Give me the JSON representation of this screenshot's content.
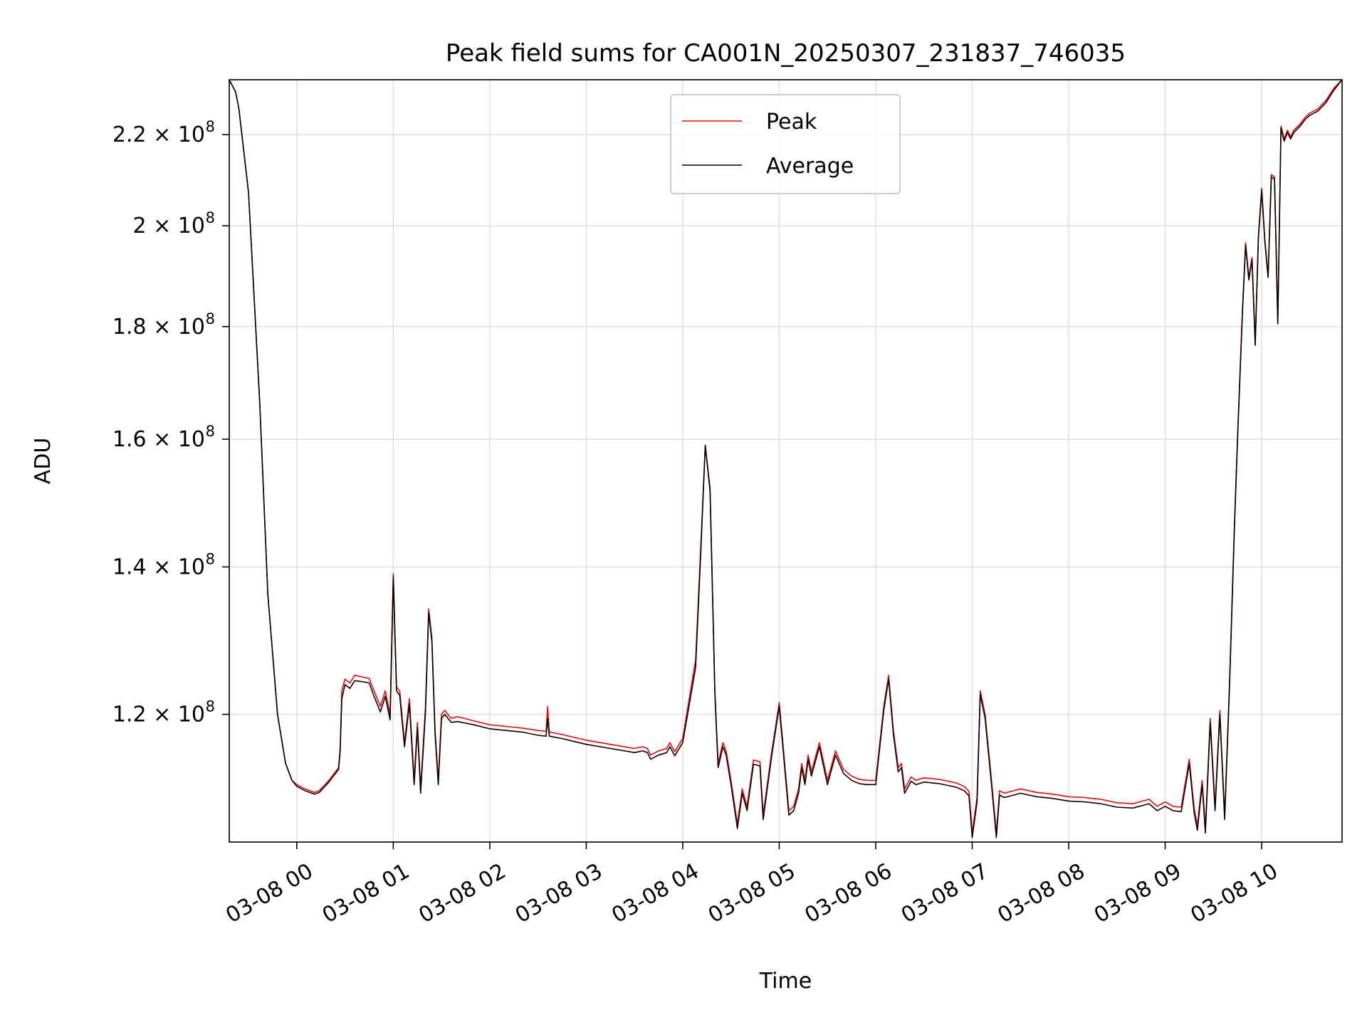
{
  "chart_data": {
    "type": "line",
    "title": "Peak field sums for CA001N_20250307_231837_746035",
    "xlabel": "Time",
    "ylabel": "ADU",
    "y_scale": "log",
    "x_range": [
      "2025-03-07 23:18",
      "2025-03-08 10:50"
    ],
    "ylim": [
      105000000,
      233000000
    ],
    "x_ticks": [
      {
        "t": "2025-03-08 00:00",
        "label": "03-08 00"
      },
      {
        "t": "2025-03-08 01:00",
        "label": "03-08 01"
      },
      {
        "t": "2025-03-08 02:00",
        "label": "03-08 02"
      },
      {
        "t": "2025-03-08 03:00",
        "label": "03-08 03"
      },
      {
        "t": "2025-03-08 04:00",
        "label": "03-08 04"
      },
      {
        "t": "2025-03-08 05:00",
        "label": "03-08 05"
      },
      {
        "t": "2025-03-08 06:00",
        "label": "03-08 06"
      },
      {
        "t": "2025-03-08 07:00",
        "label": "03-08 07"
      },
      {
        "t": "2025-03-08 08:00",
        "label": "03-08 08"
      },
      {
        "t": "2025-03-08 09:00",
        "label": "03-08 09"
      },
      {
        "t": "2025-03-08 10:00",
        "label": "03-08 10"
      }
    ],
    "y_ticks": [
      {
        "value": 120000000,
        "mantissa": "1.2"
      },
      {
        "value": 140000000,
        "mantissa": "1.4"
      },
      {
        "value": 160000000,
        "mantissa": "1.6"
      },
      {
        "value": 180000000,
        "mantissa": "1.8"
      },
      {
        "value": 200000000,
        "mantissa": "2"
      },
      {
        "value": 220000000,
        "mantissa": "2.2"
      }
    ],
    "y_tick_format": {
      "times": "×",
      "base": "10",
      "exponent": "8"
    },
    "grid": true,
    "legend_position": "upper center",
    "series": [
      {
        "name": "Peak",
        "color": "#ff0000",
        "x": [
          "2025-03-07 23:18",
          "2025-03-07 23:22",
          "2025-03-07 23:24",
          "2025-03-07 23:30",
          "2025-03-07 23:37",
          "2025-03-07 23:42",
          "2025-03-07 23:48",
          "2025-03-07 23:53",
          "2025-03-07 23:57",
          "2025-03-08 00:00",
          "2025-03-08 00:05",
          "2025-03-08 00:11",
          "2025-03-08 00:14",
          "2025-03-08 00:20",
          "2025-03-08 00:26",
          "2025-03-08 00:27",
          "2025-03-08 00:28",
          "2025-03-08 00:30",
          "2025-03-08 00:33",
          "2025-03-08 00:36",
          "2025-03-08 00:40",
          "2025-03-08 00:45",
          "2025-03-08 00:48",
          "2025-03-08 00:52",
          "2025-03-08 00:55",
          "2025-03-08 00:58",
          "2025-03-08 01:00",
          "2025-03-08 01:02",
          "2025-03-08 01:04",
          "2025-03-08 01:07",
          "2025-03-08 01:10",
          "2025-03-08 01:13",
          "2025-03-08 01:15",
          "2025-03-08 01:17",
          "2025-03-08 01:20",
          "2025-03-08 01:22",
          "2025-03-08 01:24",
          "2025-03-08 01:26",
          "2025-03-08 01:28",
          "2025-03-08 01:30",
          "2025-03-08 01:32",
          "2025-03-08 01:34",
          "2025-03-08 01:36",
          "2025-03-08 01:40",
          "2025-03-08 01:50",
          "2025-03-08 02:00",
          "2025-03-08 02:10",
          "2025-03-08 02:20",
          "2025-03-08 02:30",
          "2025-03-08 02:35",
          "2025-03-08 02:36",
          "2025-03-08 02:37",
          "2025-03-08 02:45",
          "2025-03-08 03:00",
          "2025-03-08 03:15",
          "2025-03-08 03:30",
          "2025-03-08 03:35",
          "2025-03-08 03:38",
          "2025-03-08 03:40",
          "2025-03-08 03:45",
          "2025-03-08 03:50",
          "2025-03-08 03:52",
          "2025-03-08 03:55",
          "2025-03-08 04:00",
          "2025-03-08 04:08",
          "2025-03-08 04:11",
          "2025-03-08 04:14",
          "2025-03-08 04:17",
          "2025-03-08 04:20",
          "2025-03-08 04:22",
          "2025-03-08 04:25",
          "2025-03-08 04:27",
          "2025-03-08 04:30",
          "2025-03-08 04:34",
          "2025-03-08 04:37",
          "2025-03-08 04:40",
          "2025-03-08 04:44",
          "2025-03-08 04:48",
          "2025-03-08 04:50",
          "2025-03-08 04:55",
          "2025-03-08 05:00",
          "2025-03-08 05:06",
          "2025-03-08 05:09",
          "2025-03-08 05:12",
          "2025-03-08 05:14",
          "2025-03-08 05:16",
          "2025-03-08 05:18",
          "2025-03-08 05:20",
          "2025-03-08 05:25",
          "2025-03-08 05:30",
          "2025-03-08 05:35",
          "2025-03-08 05:40",
          "2025-03-08 05:45",
          "2025-03-08 05:50",
          "2025-03-08 05:55",
          "2025-03-08 06:00",
          "2025-03-08 06:05",
          "2025-03-08 06:08",
          "2025-03-08 06:11",
          "2025-03-08 06:14",
          "2025-03-08 06:16",
          "2025-03-08 06:18",
          "2025-03-08 06:22",
          "2025-03-08 06:25",
          "2025-03-08 06:30",
          "2025-03-08 06:40",
          "2025-03-08 06:50",
          "2025-03-08 06:55",
          "2025-03-08 06:58",
          "2025-03-08 07:00",
          "2025-03-08 07:03",
          "2025-03-08 07:05",
          "2025-03-08 07:08",
          "2025-03-08 07:12",
          "2025-03-08 07:15",
          "2025-03-08 07:17",
          "2025-03-08 07:20",
          "2025-03-08 07:30",
          "2025-03-08 07:40",
          "2025-03-08 07:50",
          "2025-03-08 08:00",
          "2025-03-08 08:10",
          "2025-03-08 08:20",
          "2025-03-08 08:30",
          "2025-03-08 08:40",
          "2025-03-08 08:50",
          "2025-03-08 08:55",
          "2025-03-08 09:00",
          "2025-03-08 09:05",
          "2025-03-08 09:10",
          "2025-03-08 09:15",
          "2025-03-08 09:18",
          "2025-03-08 09:20",
          "2025-03-08 09:23",
          "2025-03-08 09:25",
          "2025-03-08 09:28",
          "2025-03-08 09:31",
          "2025-03-08 09:34",
          "2025-03-08 09:37",
          "2025-03-08 09:40",
          "2025-03-08 09:43",
          "2025-03-08 09:45",
          "2025-03-08 09:48",
          "2025-03-08 09:50",
          "2025-03-08 09:52",
          "2025-03-08 09:54",
          "2025-03-08 09:56",
          "2025-03-08 09:58",
          "2025-03-08 10:00",
          "2025-03-08 10:02",
          "2025-03-08 10:04",
          "2025-03-08 10:06",
          "2025-03-08 10:08",
          "2025-03-08 10:10",
          "2025-03-08 10:12",
          "2025-03-08 10:14",
          "2025-03-08 10:16",
          "2025-03-08 10:18",
          "2025-03-08 10:20",
          "2025-03-08 10:24",
          "2025-03-08 10:27",
          "2025-03-08 10:30",
          "2025-03-08 10:35",
          "2025-03-08 10:40",
          "2025-03-08 10:45",
          "2025-03-08 10:50"
        ],
        "y": [
          233000000,
          230000000,
          226000000,
          207000000,
          166000000,
          136000000,
          120000000,
          114000000,
          112000000,
          111500000,
          111000000,
          110600000,
          110800000,
          112000000,
          113500000,
          116000000,
          123000000,
          124500000,
          124000000,
          125000000,
          124800000,
          124600000,
          123000000,
          121000000,
          123000000,
          120000000,
          139000000,
          123500000,
          123000000,
          116500000,
          122000000,
          112000000,
          119000000,
          111000000,
          121000000,
          134000000,
          130000000,
          118000000,
          112000000,
          120000000,
          120500000,
          120000000,
          119500000,
          119700000,
          119200000,
          118700000,
          118500000,
          118300000,
          118000000,
          117900000,
          121000000,
          117800000,
          117500000,
          116800000,
          116300000,
          115800000,
          116000000,
          115800000,
          115000000,
          115500000,
          115800000,
          116500000,
          115400000,
          117000000,
          127000000,
          142000000,
          159000000,
          152000000,
          123000000,
          114000000,
          116500000,
          115500000,
          112000000,
          107000000,
          111000000,
          109000000,
          114400000,
          114200000,
          108000000,
          115000000,
          121500000,
          108500000,
          109000000,
          111000000,
          114000000,
          112000000,
          115000000,
          113000000,
          116500000,
          112000000,
          115500000,
          113300000,
          112500000,
          112100000,
          112000000,
          112000000,
          121000000,
          125000000,
          118000000,
          113500000,
          114000000,
          111000000,
          112400000,
          112000000,
          112300000,
          112100000,
          111700000,
          111300000,
          110700000,
          106000000,
          110000000,
          123000000,
          120000000,
          112000000,
          106000000,
          110800000,
          110500000,
          111000000,
          110600000,
          110400000,
          110100000,
          110000000,
          109800000,
          109400000,
          109300000,
          109800000,
          109000000,
          109500000,
          109000000,
          108900000,
          114500000,
          108800000,
          106800000,
          112000000,
          106500000,
          119500000,
          109000000,
          120500000,
          108000000,
          124000000,
          146000000,
          160500000,
          183000000,
          196500000,
          189500000,
          193500000,
          177000000,
          198000000,
          208000000,
          197000000,
          190000000,
          211000000,
          210500000,
          181000000,
          222000000,
          219000000,
          221000000,
          219500000,
          221000000,
          222500000,
          224000000,
          225000000,
          226000000,
          228000000,
          231000000,
          233000000
        ]
      },
      {
        "name": "Average",
        "color": "#000000",
        "x": [
          "2025-03-07 23:18",
          "2025-03-07 23:22",
          "2025-03-07 23:24",
          "2025-03-07 23:30",
          "2025-03-07 23:37",
          "2025-03-07 23:42",
          "2025-03-07 23:48",
          "2025-03-07 23:53",
          "2025-03-07 23:57",
          "2025-03-08 00:00",
          "2025-03-08 00:05",
          "2025-03-08 00:11",
          "2025-03-08 00:14",
          "2025-03-08 00:20",
          "2025-03-08 00:26",
          "2025-03-08 00:27",
          "2025-03-08 00:28",
          "2025-03-08 00:30",
          "2025-03-08 00:33",
          "2025-03-08 00:36",
          "2025-03-08 00:40",
          "2025-03-08 00:45",
          "2025-03-08 00:48",
          "2025-03-08 00:52",
          "2025-03-08 00:55",
          "2025-03-08 00:58",
          "2025-03-08 01:00",
          "2025-03-08 01:02",
          "2025-03-08 01:04",
          "2025-03-08 01:07",
          "2025-03-08 01:10",
          "2025-03-08 01:13",
          "2025-03-08 01:15",
          "2025-03-08 01:17",
          "2025-03-08 01:20",
          "2025-03-08 01:22",
          "2025-03-08 01:24",
          "2025-03-08 01:26",
          "2025-03-08 01:28",
          "2025-03-08 01:30",
          "2025-03-08 01:32",
          "2025-03-08 01:34",
          "2025-03-08 01:36",
          "2025-03-08 01:40",
          "2025-03-08 01:50",
          "2025-03-08 02:00",
          "2025-03-08 02:10",
          "2025-03-08 02:20",
          "2025-03-08 02:30",
          "2025-03-08 02:35",
          "2025-03-08 02:36",
          "2025-03-08 02:37",
          "2025-03-08 02:45",
          "2025-03-08 03:00",
          "2025-03-08 03:15",
          "2025-03-08 03:30",
          "2025-03-08 03:35",
          "2025-03-08 03:38",
          "2025-03-08 03:40",
          "2025-03-08 03:45",
          "2025-03-08 03:50",
          "2025-03-08 03:52",
          "2025-03-08 03:55",
          "2025-03-08 04:00",
          "2025-03-08 04:08",
          "2025-03-08 04:11",
          "2025-03-08 04:14",
          "2025-03-08 04:17",
          "2025-03-08 04:20",
          "2025-03-08 04:22",
          "2025-03-08 04:25",
          "2025-03-08 04:27",
          "2025-03-08 04:30",
          "2025-03-08 04:34",
          "2025-03-08 04:37",
          "2025-03-08 04:40",
          "2025-03-08 04:44",
          "2025-03-08 04:48",
          "2025-03-08 04:50",
          "2025-03-08 04:55",
          "2025-03-08 05:00",
          "2025-03-08 05:06",
          "2025-03-08 05:09",
          "2025-03-08 05:12",
          "2025-03-08 05:14",
          "2025-03-08 05:16",
          "2025-03-08 05:18",
          "2025-03-08 05:20",
          "2025-03-08 05:25",
          "2025-03-08 05:30",
          "2025-03-08 05:35",
          "2025-03-08 05:40",
          "2025-03-08 05:45",
          "2025-03-08 05:50",
          "2025-03-08 05:55",
          "2025-03-08 06:00",
          "2025-03-08 06:05",
          "2025-03-08 06:08",
          "2025-03-08 06:11",
          "2025-03-08 06:14",
          "2025-03-08 06:16",
          "2025-03-08 06:18",
          "2025-03-08 06:22",
          "2025-03-08 06:25",
          "2025-03-08 06:30",
          "2025-03-08 06:40",
          "2025-03-08 06:50",
          "2025-03-08 06:55",
          "2025-03-08 06:58",
          "2025-03-08 07:00",
          "2025-03-08 07:03",
          "2025-03-08 07:05",
          "2025-03-08 07:08",
          "2025-03-08 07:12",
          "2025-03-08 07:15",
          "2025-03-08 07:17",
          "2025-03-08 07:20",
          "2025-03-08 07:30",
          "2025-03-08 07:40",
          "2025-03-08 07:50",
          "2025-03-08 08:00",
          "2025-03-08 08:10",
          "2025-03-08 08:20",
          "2025-03-08 08:30",
          "2025-03-08 08:40",
          "2025-03-08 08:50",
          "2025-03-08 08:55",
          "2025-03-08 09:00",
          "2025-03-08 09:05",
          "2025-03-08 09:10",
          "2025-03-08 09:15",
          "2025-03-08 09:18",
          "2025-03-08 09:20",
          "2025-03-08 09:23",
          "2025-03-08 09:25",
          "2025-03-08 09:28",
          "2025-03-08 09:31",
          "2025-03-08 09:34",
          "2025-03-08 09:37",
          "2025-03-08 09:40",
          "2025-03-08 09:43",
          "2025-03-08 09:45",
          "2025-03-08 09:48",
          "2025-03-08 09:50",
          "2025-03-08 09:52",
          "2025-03-08 09:54",
          "2025-03-08 09:56",
          "2025-03-08 09:58",
          "2025-03-08 10:00",
          "2025-03-08 10:02",
          "2025-03-08 10:04",
          "2025-03-08 10:06",
          "2025-03-08 10:08",
          "2025-03-08 10:10",
          "2025-03-08 10:12",
          "2025-03-08 10:14",
          "2025-03-08 10:16",
          "2025-03-08 10:18",
          "2025-03-08 10:20",
          "2025-03-08 10:24",
          "2025-03-08 10:27",
          "2025-03-08 10:30",
          "2025-03-08 10:35",
          "2025-03-08 10:40",
          "2025-03-08 10:45",
          "2025-03-08 10:50"
        ],
        "y": [
          233000000,
          230000000,
          226000000,
          207000000,
          166000000,
          136000000,
          120000000,
          114000000,
          112000000,
          111300000,
          110800000,
          110400000,
          110600000,
          111800000,
          113300000,
          115500000,
          122000000,
          123800000,
          123300000,
          124300000,
          124200000,
          124000000,
          122300000,
          120300000,
          122300000,
          119300000,
          138500000,
          123000000,
          122400000,
          116000000,
          121300000,
          111500000,
          118400000,
          110500000,
          120300000,
          133500000,
          129500000,
          117500000,
          111500000,
          119500000,
          120000000,
          119500000,
          119000000,
          119100000,
          118700000,
          118200000,
          118000000,
          117800000,
          117400000,
          117300000,
          119500000,
          117300000,
          117000000,
          116300000,
          115800000,
          115300000,
          115500000,
          115300000,
          114500000,
          115000000,
          115300000,
          116000000,
          114900000,
          116500000,
          126000000,
          141000000,
          159000000,
          151500000,
          122500000,
          113500000,
          116000000,
          115000000,
          111500000,
          106500000,
          110500000,
          108500000,
          113900000,
          113700000,
          107500000,
          114500000,
          121000000,
          108000000,
          108500000,
          110500000,
          113500000,
          111500000,
          114500000,
          112500000,
          116000000,
          111500000,
          115000000,
          112800000,
          112000000,
          111600000,
          111500000,
          111500000,
          120500000,
          124500000,
          117500000,
          113000000,
          113500000,
          110500000,
          111900000,
          111500000,
          111800000,
          111600000,
          111200000,
          110800000,
          110200000,
          105500000,
          109500000,
          122500000,
          119500000,
          111500000,
          105500000,
          110300000,
          110000000,
          110500000,
          110100000,
          109900000,
          109600000,
          109500000,
          109300000,
          108900000,
          108800000,
          109300000,
          108500000,
          109000000,
          108500000,
          108400000,
          114000000,
          108300000,
          106300000,
          111500000,
          106000000,
          119000000,
          108500000,
          120000000,
          107500000,
          123500000,
          145500000,
          160000000,
          182500000,
          196000000,
          189000000,
          193000000,
          176500000,
          197500000,
          207500000,
          196500000,
          189500000,
          210500000,
          210000000,
          180500000,
          221500000,
          218500000,
          220500000,
          219000000,
          220500000,
          222000000,
          223500000,
          224500000,
          225500000,
          227500000,
          230500000,
          233000000
        ]
      }
    ]
  }
}
